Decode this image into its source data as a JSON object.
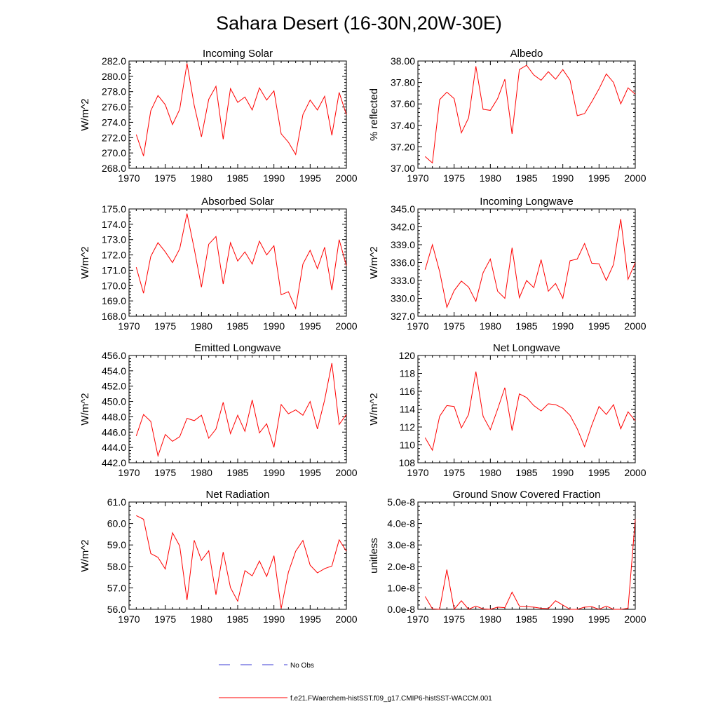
{
  "figure": {
    "title": "Sahara Desert (16-30N,20W-30E)"
  },
  "legend": {
    "entries": [
      {
        "name": "No Obs",
        "color": "#3b3bd6",
        "dash": true
      },
      {
        "name": "f.e21.FWaerchem-histSST.f09_g17.CMIP6-histSST-WACCM.001",
        "color": "#ff0000",
        "dash": false
      }
    ]
  },
  "chart_data": [
    {
      "type": "line",
      "title": "Incoming Solar",
      "ylabel": "W/m^2",
      "ylim": [
        268,
        282
      ],
      "yticks": [
        268,
        270,
        272,
        274,
        276,
        278,
        280,
        282
      ],
      "yticklabels": [
        "268.0",
        "270.0",
        "272.0",
        "274.0",
        "276.0",
        "278.0",
        "280.0",
        "282.0"
      ],
      "xlim": [
        1970,
        2000
      ],
      "xticks": [
        1970,
        1975,
        1980,
        1985,
        1990,
        1995,
        2000
      ],
      "x": [
        1971,
        1972,
        1973,
        1974,
        1975,
        1976,
        1977,
        1978,
        1979,
        1980,
        1981,
        1982,
        1983,
        1984,
        1985,
        1986,
        1987,
        1988,
        1989,
        1990,
        1991,
        1992,
        1993,
        1994,
        1995,
        1996,
        1997,
        1998,
        1999,
        2000
      ],
      "series": [
        {
          "color": "#ff0000",
          "values": [
            272.4,
            269.6,
            275.5,
            277.5,
            276.3,
            273.7,
            275.7,
            281.7,
            276.2,
            272.1,
            277.0,
            278.7,
            271.8,
            278.4,
            276.6,
            277.3,
            275.6,
            278.5,
            276.9,
            278.1,
            272.5,
            271.4,
            269.8,
            275.0,
            276.9,
            275.6,
            277.4,
            272.3,
            277.9,
            275.0
          ]
        }
      ]
    },
    {
      "type": "line",
      "title": "Albedo",
      "ylabel": "% reflected",
      "ylim": [
        37.0,
        38.0
      ],
      "yticks": [
        37.0,
        37.2,
        37.4,
        37.6,
        37.8,
        38.0
      ],
      "yticklabels": [
        "37.00",
        "37.20",
        "37.40",
        "37.60",
        "37.80",
        "38.00"
      ],
      "xlim": [
        1970,
        2000
      ],
      "xticks": [
        1970,
        1975,
        1980,
        1985,
        1990,
        1995,
        2000
      ],
      "x": [
        1971,
        1972,
        1973,
        1974,
        1975,
        1976,
        1977,
        1978,
        1979,
        1980,
        1981,
        1982,
        1983,
        1984,
        1985,
        1986,
        1987,
        1988,
        1989,
        1990,
        1991,
        1992,
        1993,
        1994,
        1995,
        1996,
        1997,
        1998,
        1999,
        2000
      ],
      "series": [
        {
          "color": "#ff0000",
          "values": [
            37.11,
            37.05,
            37.64,
            37.71,
            37.65,
            37.33,
            37.47,
            37.95,
            37.55,
            37.54,
            37.65,
            37.83,
            37.32,
            37.92,
            37.96,
            37.87,
            37.82,
            37.9,
            37.83,
            37.92,
            37.82,
            37.49,
            37.51,
            37.62,
            37.74,
            37.88,
            37.8,
            37.6,
            37.75,
            37.69
          ]
        }
      ]
    },
    {
      "type": "line",
      "title": "Absorbed Solar",
      "ylabel": "W/m^2",
      "ylim": [
        168,
        175
      ],
      "yticks": [
        168,
        169,
        170,
        171,
        172,
        173,
        174,
        175
      ],
      "yticklabels": [
        "168.0",
        "169.0",
        "170.0",
        "171.0",
        "172.0",
        "173.0",
        "174.0",
        "175.0"
      ],
      "xlim": [
        1970,
        2000
      ],
      "xticks": [
        1970,
        1975,
        1980,
        1985,
        1990,
        1995,
        2000
      ],
      "x": [
        1971,
        1972,
        1973,
        1974,
        1975,
        1976,
        1977,
        1978,
        1979,
        1980,
        1981,
        1982,
        1983,
        1984,
        1985,
        1986,
        1987,
        1988,
        1989,
        1990,
        1991,
        1992,
        1993,
        1994,
        1995,
        1996,
        1997,
        1998,
        1999,
        2000
      ],
      "series": [
        {
          "color": "#ff0000",
          "values": [
            171.2,
            169.5,
            171.9,
            172.8,
            172.2,
            171.5,
            172.4,
            174.7,
            172.4,
            169.9,
            172.7,
            173.2,
            170.1,
            172.8,
            171.6,
            172.2,
            171.4,
            172.9,
            172.0,
            172.6,
            169.4,
            169.6,
            168.5,
            171.4,
            172.3,
            171.1,
            172.5,
            169.7,
            173.0,
            171.3
          ]
        }
      ]
    },
    {
      "type": "line",
      "title": "Incoming Longwave",
      "ylabel": "W/m^2",
      "ylim": [
        327,
        345
      ],
      "yticks": [
        327,
        330,
        333,
        336,
        339,
        342,
        345
      ],
      "yticklabels": [
        "327.0",
        "330.0",
        "333.0",
        "336.0",
        "339.0",
        "342.0",
        "345.0"
      ],
      "xlim": [
        1970,
        2000
      ],
      "xticks": [
        1970,
        1975,
        1980,
        1985,
        1990,
        1995,
        2000
      ],
      "x": [
        1971,
        1972,
        1973,
        1974,
        1975,
        1976,
        1977,
        1978,
        1979,
        1980,
        1981,
        1982,
        1983,
        1984,
        1985,
        1986,
        1987,
        1988,
        1989,
        1990,
        1991,
        1992,
        1993,
        1994,
        1995,
        1996,
        1997,
        1998,
        1999,
        2000
      ],
      "series": [
        {
          "color": "#ff0000",
          "values": [
            334.8,
            339.0,
            334.5,
            328.5,
            331.3,
            332.9,
            331.9,
            329.5,
            334.3,
            336.6,
            331.2,
            330.0,
            338.5,
            330.1,
            333.0,
            331.8,
            336.5,
            331.2,
            332.5,
            330.0,
            336.3,
            336.6,
            339.2,
            335.9,
            335.8,
            333.0,
            335.7,
            343.3,
            333.2,
            336.0
          ]
        }
      ]
    },
    {
      "type": "line",
      "title": "Emitted Longwave",
      "ylabel": "W/m^2",
      "ylim": [
        442,
        456
      ],
      "yticks": [
        442,
        444,
        446,
        448,
        450,
        452,
        454,
        456
      ],
      "yticklabels": [
        "442.0",
        "444.0",
        "446.0",
        "448.0",
        "450.0",
        "452.0",
        "454.0",
        "456.0"
      ],
      "xlim": [
        1970,
        2000
      ],
      "xticks": [
        1970,
        1975,
        1980,
        1985,
        1990,
        1995,
        2000
      ],
      "x": [
        1971,
        1972,
        1973,
        1974,
        1975,
        1976,
        1977,
        1978,
        1979,
        1980,
        1981,
        1982,
        1983,
        1984,
        1985,
        1986,
        1987,
        1988,
        1989,
        1990,
        1991,
        1992,
        1993,
        1994,
        1995,
        1996,
        1997,
        1998,
        1999,
        2000
      ],
      "series": [
        {
          "color": "#ff0000",
          "values": [
            445.5,
            448.3,
            447.4,
            442.9,
            445.7,
            444.8,
            445.4,
            447.8,
            447.5,
            448.2,
            445.2,
            446.4,
            449.9,
            445.8,
            448.2,
            446.1,
            450.2,
            445.9,
            447.1,
            444.0,
            449.6,
            448.4,
            448.9,
            448.2,
            450.0,
            446.4,
            450.2,
            455.0,
            447.0,
            448.3
          ]
        }
      ]
    },
    {
      "type": "line",
      "title": "Net Longwave",
      "ylabel": "W/m^2",
      "ylim": [
        108,
        120
      ],
      "yticks": [
        108,
        110,
        112,
        114,
        116,
        118,
        120
      ],
      "yticklabels": [
        "108",
        "110",
        "112",
        "114",
        "116",
        "118",
        "120"
      ],
      "xlim": [
        1970,
        2000
      ],
      "xticks": [
        1970,
        1975,
        1980,
        1985,
        1990,
        1995,
        2000
      ],
      "x": [
        1971,
        1972,
        1973,
        1974,
        1975,
        1976,
        1977,
        1978,
        1979,
        1980,
        1981,
        1982,
        1983,
        1984,
        1985,
        1986,
        1987,
        1988,
        1989,
        1990,
        1991,
        1992,
        1993,
        1994,
        1995,
        1996,
        1997,
        1998,
        1999,
        2000
      ],
      "series": [
        {
          "color": "#ff0000",
          "values": [
            110.8,
            109.4,
            113.2,
            114.4,
            114.3,
            111.9,
            113.4,
            118.2,
            113.2,
            111.7,
            114.0,
            116.4,
            111.6,
            115.7,
            115.3,
            114.4,
            113.8,
            114.6,
            114.5,
            114.1,
            113.3,
            111.8,
            109.8,
            112.2,
            114.3,
            113.4,
            114.5,
            111.8,
            113.7,
            112.7
          ]
        }
      ]
    },
    {
      "type": "line",
      "title": "Net Radiation",
      "ylabel": "W/m^2",
      "ylim": [
        56,
        61
      ],
      "yticks": [
        56,
        57,
        58,
        59,
        60,
        61
      ],
      "yticklabels": [
        "56.0",
        "57.0",
        "58.0",
        "59.0",
        "60.0",
        "61.0"
      ],
      "xlim": [
        1970,
        2000
      ],
      "xticks": [
        1970,
        1975,
        1980,
        1985,
        1990,
        1995,
        2000
      ],
      "x": [
        1971,
        1972,
        1973,
        1974,
        1975,
        1976,
        1977,
        1978,
        1979,
        1980,
        1981,
        1982,
        1983,
        1984,
        1985,
        1986,
        1987,
        1988,
        1989,
        1990,
        1991,
        1992,
        1993,
        1994,
        1995,
        1996,
        1997,
        1998,
        1999,
        2000
      ],
      "series": [
        {
          "color": "#ff0000",
          "values": [
            60.37,
            60.2,
            58.6,
            58.42,
            57.88,
            59.57,
            58.95,
            56.43,
            59.22,
            58.28,
            58.73,
            56.68,
            58.67,
            57.01,
            56.38,
            57.8,
            57.56,
            58.25,
            57.53,
            58.5,
            56.04,
            57.73,
            58.71,
            59.21,
            58.06,
            57.7,
            57.9,
            58.02,
            59.24,
            58.71
          ]
        }
      ]
    },
    {
      "type": "line",
      "title": "Ground Snow Covered Fraction",
      "ylabel": "unitless",
      "ylim": [
        0,
        5e-08
      ],
      "yticks": [
        0,
        1e-08,
        2e-08,
        3e-08,
        4e-08,
        5e-08
      ],
      "yticklabels": [
        "0.0e-8",
        "1.0e-8",
        "2.0e-8",
        "3.0e-8",
        "4.0e-8",
        "5.0e-8"
      ],
      "xlim": [
        1970,
        2000
      ],
      "xticks": [
        1970,
        1975,
        1980,
        1985,
        1990,
        1995,
        2000
      ],
      "x": [
        1971,
        1972,
        1973,
        1974,
        1975,
        1976,
        1977,
        1978,
        1979,
        1980,
        1981,
        1982,
        1983,
        1984,
        1985,
        1986,
        1987,
        1988,
        1989,
        1990,
        1991,
        1992,
        1993,
        1994,
        1995,
        1996,
        1997,
        1998,
        1999,
        2000
      ],
      "series": [
        {
          "color": "#ff0000",
          "values": [
            6e-09,
            2e-10,
            0.0,
            1.85e-08,
            0.0,
            4e-09,
            0.0,
            1.5e-09,
            2e-10,
            0.0,
            1e-09,
            8e-10,
            8e-09,
            1.5e-09,
            1.2e-09,
            1e-09,
            5e-10,
            3e-10,
            4e-09,
            2e-09,
            0.0,
            0.0,
            1e-09,
            1.2e-09,
            0.0,
            1.5e-09,
            0.0,
            0.0,
            5e-10,
            4.2e-08
          ]
        }
      ]
    }
  ]
}
